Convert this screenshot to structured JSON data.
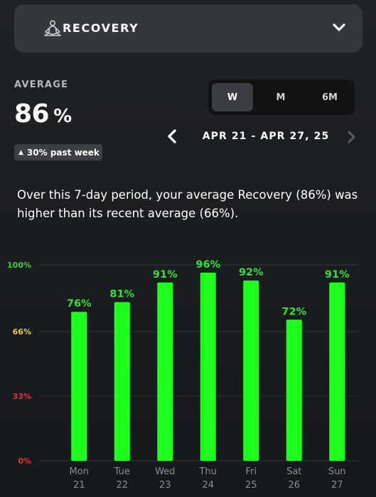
{
  "header": {
    "title": "RECOVERY",
    "icon": "meditation-icon",
    "toggle_icon": "chevron-down-icon"
  },
  "average": {
    "label": "AVERAGE",
    "value": "86",
    "unit": "%",
    "delta_text": "30% past week",
    "delta_icon": "triangle-up-icon"
  },
  "period_selector": {
    "options": [
      "W",
      "M",
      "6M"
    ],
    "selected": "W"
  },
  "date_range": {
    "label": "APR 21 - APR 27, 25",
    "prev_icon": "chevron-left-icon",
    "next_icon": "chevron-right-icon"
  },
  "summary": "Over this 7-day period, your average Recovery (86%) was higher than its recent average (66%).",
  "colors": {
    "bar_green": "#1dff1d",
    "label_green": "#35e035",
    "tick_green": "#35d035",
    "tick_yellow": "#e8c84a",
    "tick_red": "#e03434",
    "axis_text": "#8a8e92"
  },
  "chart_data": {
    "type": "bar",
    "categories": [
      "Mon 21",
      "Tue 22",
      "Wed 23",
      "Thu 24",
      "Fri 25",
      "Sat 26",
      "Sun 27"
    ],
    "day_names": [
      "Mon",
      "Tue",
      "Wed",
      "Thu",
      "Fri",
      "Sat",
      "Sun"
    ],
    "day_numbers": [
      "21",
      "22",
      "23",
      "24",
      "25",
      "26",
      "27"
    ],
    "values": [
      76,
      81,
      91,
      96,
      92,
      72,
      91
    ],
    "value_labels": [
      "76%",
      "81%",
      "91%",
      "96%",
      "92%",
      "72%",
      "91%"
    ],
    "y_ticks": [
      {
        "value": 100,
        "label": "100%",
        "color": "#35d035"
      },
      {
        "value": 66,
        "label": "66%",
        "color": "#e8c84a"
      },
      {
        "value": 33,
        "label": "33%",
        "color": "#e03434"
      },
      {
        "value": 0,
        "label": "0%",
        "color": "#e03434"
      }
    ],
    "ylim": [
      0,
      100
    ],
    "title": "",
    "xlabel": "",
    "ylabel": ""
  }
}
